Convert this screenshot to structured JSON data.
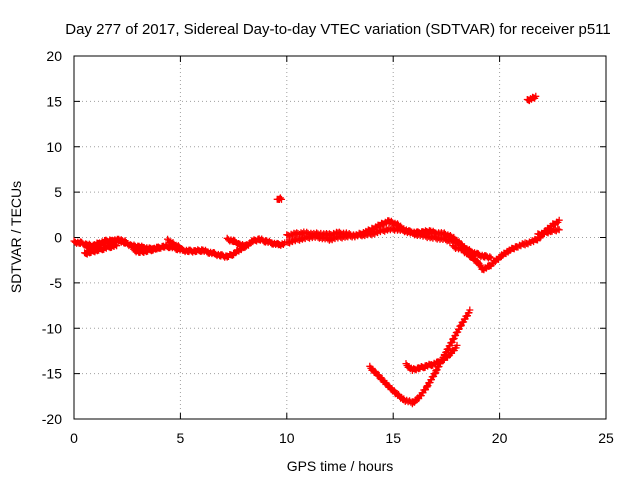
{
  "chart_data": {
    "type": "scatter",
    "title": "Day 277 of 2017, Sidereal Day-to-day VTEC variation (SDTVAR) for receiver p511",
    "xlabel": "GPS time / hours",
    "ylabel": "SDTVAR / TECUs",
    "xlim": [
      0,
      25
    ],
    "ylim": [
      -20,
      20
    ],
    "xticks": [
      0,
      5,
      10,
      15,
      20,
      25
    ],
    "yticks": [
      -20,
      -15,
      -10,
      -5,
      0,
      5,
      10,
      15,
      20
    ],
    "grid": true,
    "marker": "+",
    "series": [
      {
        "name": "SDTVAR",
        "color": "#ff0000",
        "tracks": [
          {
            "x": [
              0.0,
              0.3,
              0.6,
              0.9,
              1.2,
              1.5,
              1.8,
              2.1,
              2.4
            ],
            "y": [
              -0.5,
              -0.6,
              -0.8,
              -0.9,
              -0.6,
              -0.4,
              -0.5,
              -0.3,
              -0.4
            ]
          },
          {
            "x": [
              0.6,
              0.9,
              1.2,
              1.5,
              1.8,
              2.1,
              2.4,
              2.7,
              3.0,
              3.3,
              3.6,
              3.9,
              4.2,
              4.5,
              4.8,
              5.1,
              5.4,
              5.7,
              6.0,
              6.3,
              6.6,
              6.9,
              7.2,
              7.5,
              7.8,
              8.1,
              8.4,
              8.7,
              9.0,
              9.3,
              9.6,
              9.9
            ],
            "y": [
              -1.2,
              -1.0,
              -0.8,
              -0.5,
              -0.3,
              -0.3,
              -0.6,
              -0.9,
              -1.0,
              -1.1,
              -1.3,
              -1.2,
              -1.0,
              -1.0,
              -1.2,
              -1.4,
              -1.5,
              -1.5,
              -1.4,
              -1.6,
              -1.8,
              -2.0,
              -2.1,
              -1.8,
              -1.3,
              -0.9,
              -0.4,
              -0.2,
              -0.4,
              -0.6,
              -0.8,
              -0.7
            ]
          },
          {
            "x": [
              0.5,
              0.8,
              1.1,
              1.4,
              1.7,
              2.0
            ],
            "y": [
              -1.8,
              -1.6,
              -1.4,
              -1.2,
              -1.0,
              -0.9
            ]
          },
          {
            "x": [
              2.8,
              3.1,
              3.4,
              3.7,
              4.0
            ],
            "y": [
              -1.4,
              -1.6,
              -1.5,
              -1.3,
              -1.1
            ]
          },
          {
            "x": [
              4.4,
              4.6,
              4.8,
              5.0
            ],
            "y": [
              -0.3,
              -0.6,
              -0.9,
              -1.1
            ]
          },
          {
            "x": [
              7.2,
              7.5,
              7.8,
              8.1
            ],
            "y": [
              -0.2,
              -0.4,
              -0.8,
              -1.0
            ]
          },
          {
            "x": [
              10.0,
              10.4,
              10.8,
              11.2,
              11.6,
              12.0,
              12.4,
              12.8,
              13.2,
              13.6,
              14.0,
              14.4,
              14.8,
              15.2,
              15.5,
              15.8,
              16.1,
              16.4,
              16.7,
              17.0,
              17.4,
              17.8,
              18.1,
              18.4,
              18.7,
              19.0,
              19.3,
              19.6
            ],
            "y": [
              0.2,
              0.4,
              0.5,
              0.4,
              0.4,
              0.3,
              0.5,
              0.4,
              0.2,
              0.5,
              0.9,
              1.4,
              1.8,
              1.4,
              0.9,
              0.6,
              0.5,
              0.6,
              0.7,
              0.5,
              0.4,
              0.0,
              -0.6,
              -1.2,
              -1.6,
              -1.9,
              -2.1,
              -2.2
            ]
          },
          {
            "x": [
              10.0,
              10.4,
              10.8,
              11.2,
              11.6,
              12.0,
              12.4,
              12.8,
              13.2,
              13.6,
              14.0,
              14.4,
              14.8,
              15.2,
              15.6,
              16.0,
              16.4,
              16.8,
              17.2,
              17.6,
              18.0
            ],
            "y": [
              -0.6,
              -0.3,
              -0.1,
              0.1,
              0.0,
              -0.2,
              0.0,
              0.1,
              0.2,
              0.3,
              0.4,
              0.7,
              0.9,
              0.9,
              0.7,
              0.4,
              0.2,
              0.0,
              -0.1,
              -0.3,
              -0.5
            ]
          },
          {
            "x": [
              17.8,
              18.2,
              18.6,
              19.0,
              19.2,
              19.5,
              19.8,
              20.1,
              20.4,
              20.8,
              21.2,
              21.6,
              21.9,
              22.1,
              22.3,
              22.5,
              22.8
            ],
            "y": [
              -1.0,
              -1.3,
              -2.0,
              -2.8,
              -3.5,
              -3.2,
              -2.6,
              -2.0,
              -1.5,
              -1.0,
              -0.7,
              -0.4,
              0.0,
              0.6,
              1.0,
              1.4,
              1.8
            ]
          },
          {
            "x": [
              21.8,
              22.1,
              22.4,
              22.8
            ],
            "y": [
              0.3,
              0.5,
              0.7,
              0.9
            ]
          },
          {
            "x": [
              13.9,
              14.3,
              14.7,
              15.1,
              15.5,
              15.9,
              16.2,
              16.6,
              17.0,
              17.4,
              17.8,
              18.2,
              18.6
            ],
            "y": [
              -14.3,
              -15.2,
              -16.2,
              -17.1,
              -17.9,
              -18.2,
              -17.7,
              -16.4,
              -14.8,
              -13.0,
              -11.3,
              -9.6,
              -8.1
            ]
          },
          {
            "x": [
              15.6,
              15.9,
              16.2,
              16.5,
              16.8,
              17.1,
              17.4,
              17.7,
              18.0
            ],
            "y": [
              -14.0,
              -14.6,
              -14.4,
              -14.2,
              -14.0,
              -13.8,
              -13.4,
              -12.8,
              -12.0
            ]
          },
          {
            "x": [
              9.55,
              9.65,
              9.75
            ],
            "y": [
              4.1,
              4.3,
              4.2
            ]
          },
          {
            "x": [
              21.3,
              21.5,
              21.7
            ],
            "y": [
              15.1,
              15.3,
              15.5
            ]
          }
        ]
      }
    ]
  }
}
